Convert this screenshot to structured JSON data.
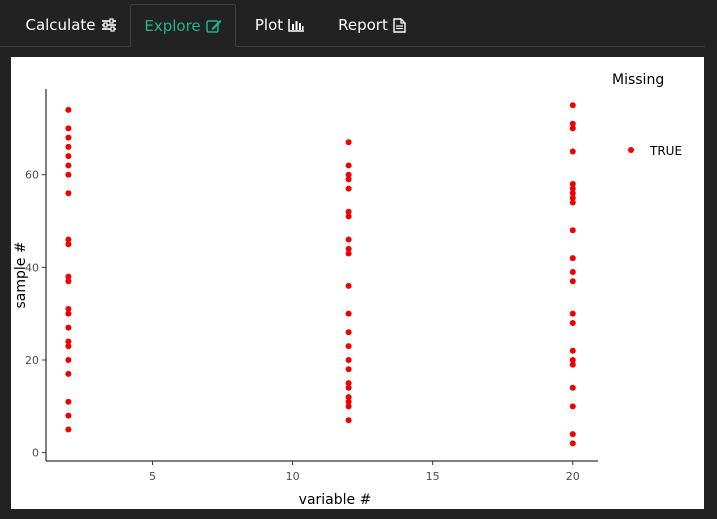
{
  "tabs": [
    {
      "label": "Calculate",
      "icon": "sliders-icon"
    },
    {
      "label": "Explore",
      "icon": "edit-icon"
    },
    {
      "label": "Plot",
      "icon": "bar-chart-icon"
    },
    {
      "label": "Report",
      "icon": "document-icon"
    }
  ],
  "active_tab": "Explore",
  "colors": {
    "accent": "#21b48a",
    "point": "#ee0000",
    "background": "#222222"
  },
  "chart_data": {
    "type": "scatter",
    "xlabel": "variable #",
    "ylabel": "sample #",
    "xlim": [
      1.2,
      20.9
    ],
    "ylim": [
      -1.8,
      78.5
    ],
    "xticks": [
      5,
      10,
      15,
      20
    ],
    "yticks": [
      0,
      20,
      40,
      60
    ],
    "grid": false,
    "legend": {
      "title": "Missing",
      "placement": "right"
    },
    "series": [
      {
        "name": "TRUE",
        "color": "#ee0000",
        "points": [
          [
            2,
            74
          ],
          [
            2,
            70
          ],
          [
            2,
            68
          ],
          [
            2,
            66
          ],
          [
            2,
            64
          ],
          [
            2,
            62
          ],
          [
            2,
            60
          ],
          [
            2,
            56
          ],
          [
            2,
            46
          ],
          [
            2,
            45
          ],
          [
            2,
            38
          ],
          [
            2,
            37
          ],
          [
            2,
            31
          ],
          [
            2,
            30
          ],
          [
            2,
            27
          ],
          [
            2,
            24
          ],
          [
            2,
            23
          ],
          [
            2,
            20
          ],
          [
            2,
            17
          ],
          [
            2,
            11
          ],
          [
            2,
            8
          ],
          [
            2,
            5
          ],
          [
            12,
            67
          ],
          [
            12,
            62
          ],
          [
            12,
            60
          ],
          [
            12,
            59
          ],
          [
            12,
            57
          ],
          [
            12,
            52
          ],
          [
            12,
            51
          ],
          [
            12,
            46
          ],
          [
            12,
            44
          ],
          [
            12,
            43
          ],
          [
            12,
            36
          ],
          [
            12,
            30
          ],
          [
            12,
            26
          ],
          [
            12,
            23
          ],
          [
            12,
            20
          ],
          [
            12,
            18
          ],
          [
            12,
            15
          ],
          [
            12,
            14
          ],
          [
            12,
            12
          ],
          [
            12,
            11
          ],
          [
            12,
            10
          ],
          [
            12,
            7
          ],
          [
            20,
            75
          ],
          [
            20,
            71
          ],
          [
            20,
            70
          ],
          [
            20,
            65
          ],
          [
            20,
            58
          ],
          [
            20,
            57
          ],
          [
            20,
            56
          ],
          [
            20,
            55
          ],
          [
            20,
            54
          ],
          [
            20,
            48
          ],
          [
            20,
            42
          ],
          [
            20,
            39
          ],
          [
            20,
            37
          ],
          [
            20,
            30
          ],
          [
            20,
            28
          ],
          [
            20,
            22
          ],
          [
            20,
            20
          ],
          [
            20,
            19
          ],
          [
            20,
            14
          ],
          [
            20,
            10
          ],
          [
            20,
            4
          ],
          [
            20,
            2
          ]
        ]
      }
    ]
  }
}
